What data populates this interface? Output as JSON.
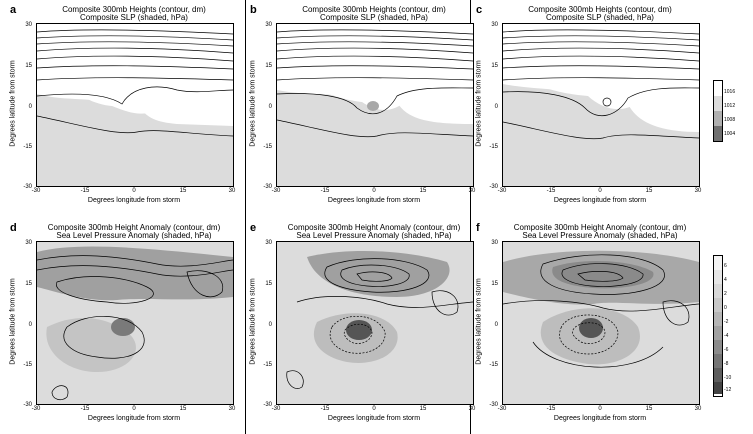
{
  "panels": [
    {
      "label": "a",
      "title1": "Composite 300mb Heights (contour, dm)",
      "title2": "Composite SLP (shaded, hPa)"
    },
    {
      "label": "b",
      "title1": "Composite 300mb Heights (contour, dm)",
      "title2": "Composite SLP (shaded, hPa)"
    },
    {
      "label": "c",
      "title1": "Composite 300mb Heights (contour, dm)",
      "title2": "Composite SLP (shaded, hPa)"
    },
    {
      "label": "d",
      "title1": "Composite 300mb Height Anomaly (contour, dm)",
      "title2": "Sea Level Pressure Anomaly (shaded, hPa)"
    },
    {
      "label": "e",
      "title1": "Composite 300mb Height Anomaly (contour, dm)",
      "title2": "Sea Level Pressure Anomaly (shaded, hPa)"
    },
    {
      "label": "f",
      "title1": "Composite 300mb Height Anomaly (contour, dm)",
      "title2": "Sea Level Pressure Anomaly (shaded, hPa)"
    }
  ],
  "axes": {
    "xlabel": "Degrees longitude from storm",
    "ylabel": "Degrees latitude from storm",
    "xticks": [
      "-30",
      "-15",
      "0",
      "15",
      "30"
    ],
    "yticks": [
      "30",
      "15",
      "0",
      "-15",
      "-30"
    ]
  },
  "colorbar_top": {
    "ticks": [
      "1016",
      "1012",
      "1008",
      "1004"
    ]
  },
  "colorbar_bottom": {
    "ticks": [
      "6",
      "4",
      "2",
      "0",
      "-2",
      "-4",
      "-6",
      "-8",
      "-10",
      "-12"
    ]
  },
  "colors": {
    "shade_light": "#dcdcdc",
    "shade_mid": "#bdbdbd",
    "shade_dark": "#8f8f8f",
    "shade_darkest": "#555555"
  }
}
